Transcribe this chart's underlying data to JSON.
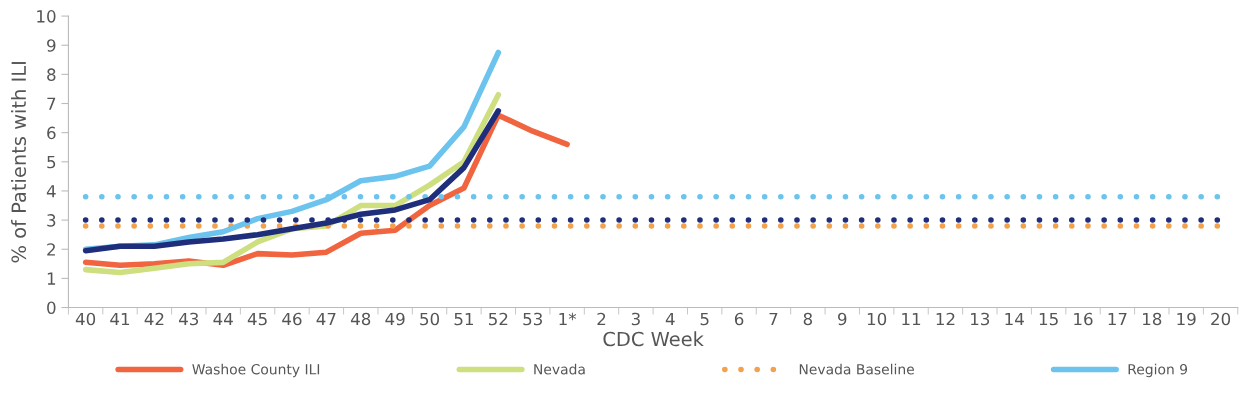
{
  "chart_data": {
    "type": "line",
    "xlabel": "CDC Week",
    "ylabel": "% of Patients with ILI",
    "categories": [
      "40",
      "41",
      "42",
      "43",
      "44",
      "45",
      "46",
      "47",
      "48",
      "49",
      "50",
      "51",
      "52",
      "53",
      "1*",
      "2",
      "3",
      "4",
      "5",
      "6",
      "7",
      "8",
      "9",
      "10",
      "11",
      "12",
      "13",
      "14",
      "15",
      "16",
      "17",
      "18",
      "19",
      "20"
    ],
    "ylim": [
      0,
      10
    ],
    "yticks": [
      0,
      1,
      2,
      3,
      4,
      5,
      6,
      7,
      8,
      9,
      10
    ],
    "grid": false,
    "legend": "bottom",
    "marker": "none",
    "series": [
      {
        "name": "Washoe County ILI",
        "color": "#f0643f",
        "line_style": "solid",
        "values": [
          1.55,
          1.45,
          1.5,
          1.6,
          1.45,
          1.85,
          1.8,
          1.9,
          2.55,
          2.65,
          3.5,
          4.1,
          6.6,
          6.05,
          5.6,
          null,
          null,
          null,
          null,
          null,
          null,
          null,
          null,
          null,
          null,
          null,
          null,
          null,
          null,
          null,
          null,
          null,
          null,
          null
        ]
      },
      {
        "name": "Nevada",
        "color": "#cddf7e",
        "line_style": "solid",
        "values": [
          1.3,
          1.2,
          1.35,
          1.5,
          1.55,
          2.25,
          2.7,
          2.8,
          3.5,
          3.5,
          4.2,
          5.0,
          7.3,
          null,
          null,
          null,
          null,
          null,
          null,
          null,
          null,
          null,
          null,
          null,
          null,
          null,
          null,
          null,
          null,
          null,
          null,
          null,
          null,
          null
        ]
      },
      {
        "name": "Nevada Baseline",
        "color": "#f5a04a",
        "line_style": "dotted",
        "values": [
          2.8,
          2.8,
          2.8,
          2.8,
          2.8,
          2.8,
          2.8,
          2.8,
          2.8,
          2.8,
          2.8,
          2.8,
          2.8,
          2.8,
          2.8,
          2.8,
          2.8,
          2.8,
          2.8,
          2.8,
          2.8,
          2.8,
          2.8,
          2.8,
          2.8,
          2.8,
          2.8,
          2.8,
          2.8,
          2.8,
          2.8,
          2.8,
          2.8,
          2.8
        ]
      },
      {
        "name": "Region 9",
        "color": "#6bc3ee",
        "line_style": "solid",
        "values": [
          2.0,
          2.1,
          2.15,
          2.4,
          2.6,
          3.05,
          3.3,
          3.7,
          4.35,
          4.5,
          4.85,
          6.2,
          8.75,
          null,
          null,
          null,
          null,
          null,
          null,
          null,
          null,
          null,
          null,
          null,
          null,
          null,
          null,
          null,
          null,
          null,
          null,
          null,
          null,
          null
        ]
      },
      {
        "color": "#6bc3ee",
        "line_style": "dotted",
        "values": [
          3.8,
          3.8,
          3.8,
          3.8,
          3.8,
          3.8,
          3.8,
          3.8,
          3.8,
          3.8,
          3.8,
          3.8,
          3.8,
          3.8,
          3.8,
          3.8,
          3.8,
          3.8,
          3.8,
          3.8,
          3.8,
          3.8,
          3.8,
          3.8,
          3.8,
          3.8,
          3.8,
          3.8,
          3.8,
          3.8,
          3.8,
          3.8,
          3.8,
          3.8
        ]
      },
      {
        "color": "#1f2e7a",
        "line_style": "solid",
        "values": [
          1.95,
          2.1,
          2.1,
          2.25,
          2.35,
          2.5,
          2.7,
          2.9,
          3.2,
          3.35,
          3.7,
          4.8,
          6.75,
          null,
          null,
          null,
          null,
          null,
          null,
          null,
          null,
          null,
          null,
          null,
          null,
          null,
          null,
          null,
          null,
          null,
          null,
          null,
          null,
          null
        ]
      },
      {
        "color": "#1f2e7a",
        "line_style": "dotted",
        "values": [
          3.0,
          3.0,
          3.0,
          3.0,
          3.0,
          3.0,
          3.0,
          3.0,
          3.0,
          3.0,
          3.0,
          3.0,
          3.0,
          3.0,
          3.0,
          3.0,
          3.0,
          3.0,
          3.0,
          3.0,
          3.0,
          3.0,
          3.0,
          3.0,
          3.0,
          3.0,
          3.0,
          3.0,
          3.0,
          3.0,
          3.0,
          3.0,
          3.0,
          3.0
        ]
      }
    ]
  }
}
